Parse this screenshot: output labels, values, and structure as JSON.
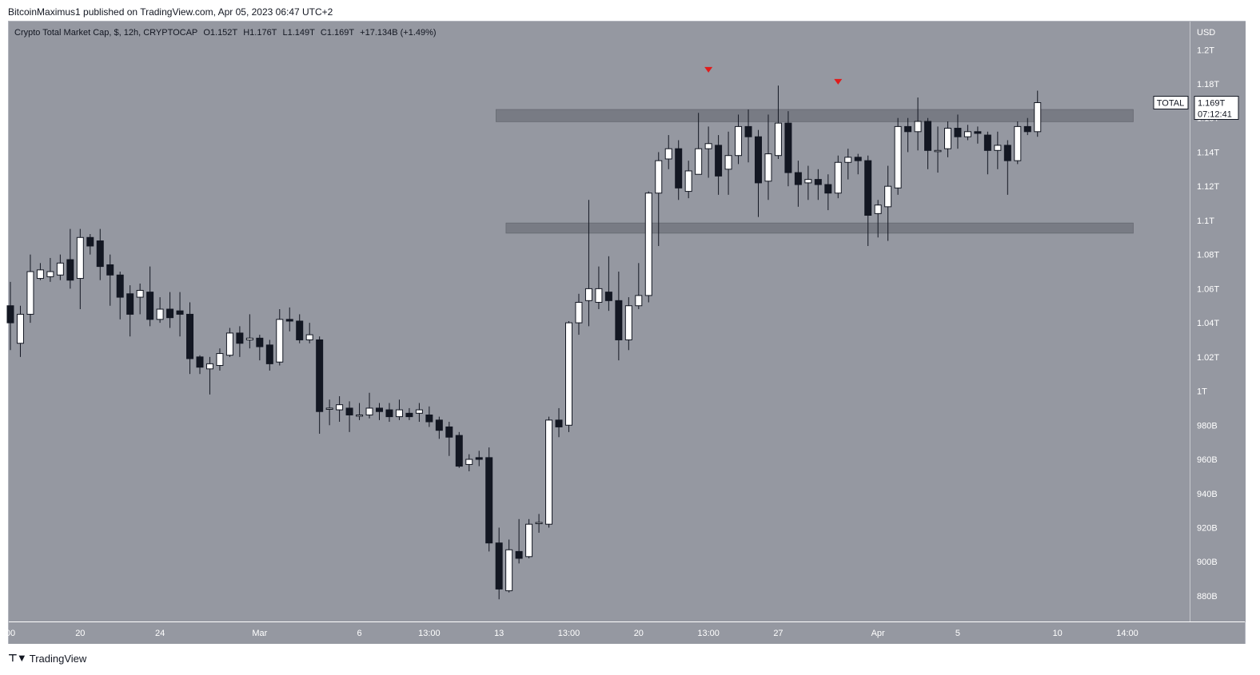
{
  "publisher_line": "BitcoinMaximus1 published on TradingView.com, Apr 05, 2023 06:47 UTC+2",
  "legend": {
    "title": "Crypto Total Market Cap, $, 12h, CRYPTOCAP",
    "o_label": "O",
    "o_value": "1.152T",
    "h_label": "H",
    "h_value": "1.176T",
    "l_label": "L",
    "l_value": "1.149T",
    "c_label": "C",
    "c_value": "1.169T",
    "change": "+17.134B (+1.49%)"
  },
  "currency_label": "USD",
  "last_price": {
    "name": "TOTAL",
    "value": "1.169T",
    "countdown": "07:12:41"
  },
  "footer": {
    "brand": "TradingView",
    "icon": "tradingview-logo-icon"
  },
  "colors": {
    "background": "#9598a1",
    "up": "#ffffff",
    "down": "#131722",
    "marker": "#e01b1b",
    "zone": "#6f727b"
  },
  "chart_data": {
    "type": "candlestick",
    "title": "Crypto Total Market Cap, $, 12h, CRYPTOCAP",
    "y_unit": "USD",
    "ylim": [
      0.865,
      1.2165
    ],
    "y_ticks": [
      {
        "value": 1.2,
        "label": "1.2T"
      },
      {
        "value": 1.18,
        "label": "1.18T"
      },
      {
        "value": 1.16,
        "label": "1.16T"
      },
      {
        "value": 1.14,
        "label": "1.14T"
      },
      {
        "value": 1.12,
        "label": "1.12T"
      },
      {
        "value": 1.1,
        "label": "1.1T"
      },
      {
        "value": 1.08,
        "label": "1.08T"
      },
      {
        "value": 1.06,
        "label": "1.06T"
      },
      {
        "value": 1.04,
        "label": "1.04T"
      },
      {
        "value": 1.02,
        "label": "1.02T"
      },
      {
        "value": 1.0,
        "label": "1T"
      },
      {
        "value": 0.98,
        "label": "980B"
      },
      {
        "value": 0.96,
        "label": "960B"
      },
      {
        "value": 0.94,
        "label": "940B"
      },
      {
        "value": 0.92,
        "label": "920B"
      },
      {
        "value": 0.9,
        "label": "900B"
      },
      {
        "value": 0.88,
        "label": "880B"
      }
    ],
    "x_ticks": [
      {
        "index": 0,
        "label": "00"
      },
      {
        "index": 7,
        "label": "20"
      },
      {
        "index": 15,
        "label": "24"
      },
      {
        "index": 25,
        "label": "Mar"
      },
      {
        "index": 35,
        "label": "6"
      },
      {
        "index": 42,
        "label": "13:00"
      },
      {
        "index": 49,
        "label": "13"
      },
      {
        "index": 56,
        "label": "13:00"
      },
      {
        "index": 63,
        "label": "20"
      },
      {
        "index": 70,
        "label": "13:00"
      },
      {
        "index": 77,
        "label": "27"
      },
      {
        "index": 87,
        "label": "Apr"
      },
      {
        "index": 95,
        "label": "5"
      },
      {
        "index": 105,
        "label": "10"
      },
      {
        "index": 112,
        "label": "14:00"
      }
    ],
    "x_span": 119,
    "candles": [
      [
        1.05,
        1.04,
        1.064,
        1.024
      ],
      [
        1.028,
        1.045,
        1.05,
        1.02
      ],
      [
        1.045,
        1.07,
        1.08,
        1.04
      ],
      [
        1.066,
        1.071,
        1.075,
        1.065
      ],
      [
        1.067,
        1.07,
        1.078,
        1.064
      ],
      [
        1.068,
        1.075,
        1.08,
        1.065
      ],
      [
        1.077,
        1.065,
        1.095,
        1.06
      ],
      [
        1.066,
        1.09,
        1.095,
        1.048
      ],
      [
        1.09,
        1.085,
        1.092,
        1.08
      ],
      [
        1.088,
        1.073,
        1.095,
        1.065
      ],
      [
        1.074,
        1.068,
        1.08,
        1.05
      ],
      [
        1.068,
        1.055,
        1.07,
        1.042
      ],
      [
        1.057,
        1.045,
        1.062,
        1.032
      ],
      [
        1.055,
        1.059,
        1.063,
        1.045
      ],
      [
        1.058,
        1.042,
        1.073,
        1.038
      ],
      [
        1.042,
        1.048,
        1.055,
        1.04
      ],
      [
        1.048,
        1.043,
        1.058,
        1.037
      ],
      [
        1.047,
        1.045,
        1.058,
        1.032
      ],
      [
        1.045,
        1.019,
        1.052,
        1.01
      ],
      [
        1.02,
        1.014,
        1.021,
        1.01
      ],
      [
        1.013,
        1.016,
        1.02,
        0.998
      ],
      [
        1.015,
        1.022,
        1.025,
        1.012
      ],
      [
        1.021,
        1.034,
        1.037,
        1.02
      ],
      [
        1.034,
        1.028,
        1.038,
        1.02
      ],
      [
        1.03,
        1.031,
        1.045,
        1.025
      ],
      [
        1.031,
        1.026,
        1.033,
        1.018
      ],
      [
        1.027,
        1.016,
        1.03,
        1.012
      ],
      [
        1.017,
        1.042,
        1.048,
        1.015
      ],
      [
        1.042,
        1.041,
        1.049,
        1.035
      ],
      [
        1.041,
        1.03,
        1.045,
        1.028
      ],
      [
        1.03,
        1.033,
        1.04,
        1.028
      ],
      [
        1.03,
        0.988,
        1.032,
        0.975
      ],
      [
        0.99,
        0.99,
        0.995,
        0.98
      ],
      [
        0.989,
        0.992,
        0.997,
        0.982
      ],
      [
        0.99,
        0.986,
        0.994,
        0.976
      ],
      [
        0.986,
        0.986,
        0.993,
        0.983
      ],
      [
        0.986,
        0.99,
        0.999,
        0.984
      ],
      [
        0.99,
        0.988,
        0.993,
        0.983
      ],
      [
        0.989,
        0.985,
        0.993,
        0.982
      ],
      [
        0.985,
        0.989,
        0.995,
        0.983
      ],
      [
        0.987,
        0.985,
        0.99,
        0.983
      ],
      [
        0.987,
        0.989,
        0.993,
        0.982
      ],
      [
        0.986,
        0.982,
        0.991,
        0.979
      ],
      [
        0.983,
        0.977,
        0.985,
        0.972
      ],
      [
        0.979,
        0.973,
        0.982,
        0.962
      ],
      [
        0.974,
        0.956,
        0.976,
        0.955
      ],
      [
        0.957,
        0.96,
        0.963,
        0.953
      ],
      [
        0.961,
        0.96,
        0.965,
        0.956
      ],
      [
        0.961,
        0.911,
        0.967,
        0.906
      ],
      [
        0.911,
        0.884,
        0.92,
        0.878
      ],
      [
        0.883,
        0.907,
        0.913,
        0.882
      ],
      [
        0.906,
        0.902,
        0.925,
        0.899
      ],
      [
        0.903,
        0.922,
        0.925,
        0.902
      ],
      [
        0.923,
        0.923,
        0.928,
        0.917
      ],
      [
        0.922,
        0.983,
        0.985,
        0.92
      ],
      [
        0.983,
        0.979,
        0.99,
        0.973
      ],
      [
        0.98,
        1.04,
        1.041,
        0.976
      ],
      [
        1.04,
        1.052,
        1.057,
        1.033
      ],
      [
        1.053,
        1.06,
        1.112,
        1.038
      ],
      [
        1.052,
        1.06,
        1.073,
        1.048
      ],
      [
        1.058,
        1.053,
        1.079,
        1.047
      ],
      [
        1.053,
        1.03,
        1.07,
        1.018
      ],
      [
        1.03,
        1.05,
        1.055,
        1.024
      ],
      [
        1.05,
        1.056,
        1.075,
        1.048
      ],
      [
        1.056,
        1.116,
        1.117,
        1.052
      ],
      [
        1.116,
        1.135,
        1.14,
        1.085
      ],
      [
        1.136,
        1.142,
        1.15,
        1.13
      ],
      [
        1.142,
        1.119,
        1.147,
        1.112
      ],
      [
        1.117,
        1.129,
        1.135,
        1.113
      ],
      [
        1.127,
        1.142,
        1.163,
        1.128
      ],
      [
        1.142,
        1.145,
        1.155,
        1.125
      ],
      [
        1.144,
        1.126,
        1.15,
        1.115
      ],
      [
        1.13,
        1.138,
        1.152,
        1.115
      ],
      [
        1.138,
        1.155,
        1.162,
        1.133
      ],
      [
        1.155,
        1.149,
        1.165,
        1.134
      ],
      [
        1.149,
        1.122,
        1.153,
        1.102
      ],
      [
        1.123,
        1.139,
        1.162,
        1.112
      ],
      [
        1.138,
        1.157,
        1.179,
        1.136
      ],
      [
        1.157,
        1.128,
        1.164,
        1.12
      ],
      [
        1.128,
        1.121,
        1.135,
        1.108
      ],
      [
        1.122,
        1.124,
        1.132,
        1.112
      ],
      [
        1.124,
        1.121,
        1.13,
        1.112
      ],
      [
        1.121,
        1.116,
        1.127,
        1.106
      ],
      [
        1.116,
        1.134,
        1.138,
        1.113
      ],
      [
        1.134,
        1.137,
        1.142,
        1.124
      ],
      [
        1.137,
        1.135,
        1.139,
        1.127
      ],
      [
        1.135,
        1.103,
        1.138,
        1.085
      ],
      [
        1.104,
        1.109,
        1.112,
        1.09
      ],
      [
        1.108,
        1.12,
        1.132,
        1.088
      ],
      [
        1.119,
        1.155,
        1.16,
        1.115
      ],
      [
        1.155,
        1.152,
        1.16,
        1.14
      ],
      [
        1.152,
        1.158,
        1.172,
        1.141
      ],
      [
        1.158,
        1.141,
        1.16,
        1.13
      ],
      [
        1.141,
        1.141,
        1.155,
        1.128
      ],
      [
        1.142,
        1.154,
        1.158,
        1.137
      ],
      [
        1.154,
        1.149,
        1.162,
        1.142
      ],
      [
        1.149,
        1.152,
        1.156,
        1.147
      ],
      [
        1.152,
        1.151,
        1.155,
        1.145
      ],
      [
        1.15,
        1.141,
        1.152,
        1.127
      ],
      [
        1.141,
        1.144,
        1.152,
        1.13
      ],
      [
        1.144,
        1.135,
        1.147,
        1.115
      ],
      [
        1.135,
        1.155,
        1.158,
        1.133
      ],
      [
        1.155,
        1.152,
        1.16,
        1.15
      ],
      [
        1.152,
        1.169,
        1.176,
        1.149
      ]
    ],
    "zones": [
      {
        "x_start": 48.7,
        "x_end": 112.6,
        "y_low": 1.1578,
        "y_high": 1.165
      },
      {
        "x_start": 49.7,
        "x_end": 112.6,
        "y_low": 1.0925,
        "y_high": 1.0985
      }
    ],
    "markers": [
      {
        "index": 70,
        "value": 1.188,
        "shape": "down-triangle"
      },
      {
        "index": 83,
        "value": 1.181,
        "shape": "down-triangle"
      }
    ]
  }
}
